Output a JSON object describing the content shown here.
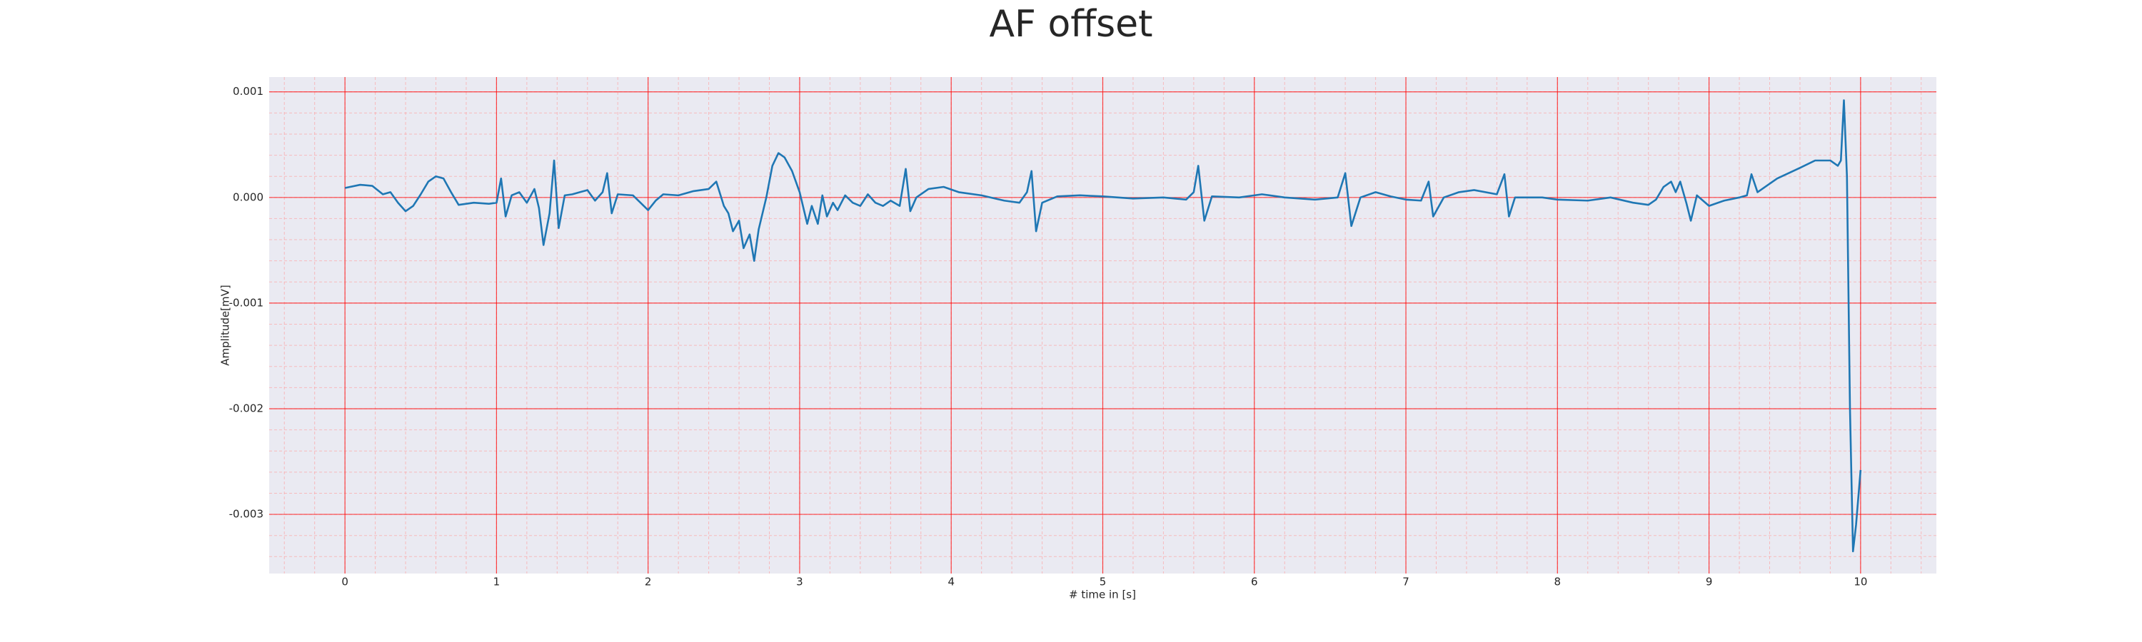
{
  "chart_data": {
    "type": "line",
    "title": "AF offset",
    "xlabel": "# time in [s]",
    "ylabel": "Amplitude[mV]",
    "xlim": [
      -0.5,
      10.5
    ],
    "ylim": [
      -0.00356,
      0.00114
    ],
    "xticks": [
      0,
      1,
      2,
      3,
      4,
      5,
      6,
      7,
      8,
      9,
      10
    ],
    "yticks": [
      -0.003,
      -0.002,
      -0.001,
      {
        "value": 0,
        "label": "0.000"
      },
      0.001
    ],
    "grid": true,
    "minor_grid": true,
    "grid_color": "#ff0000",
    "minor_grid_color": "#ff9999",
    "background": "#eaeaf2",
    "x": [
      0,
      0.1,
      0.18,
      0.25,
      0.3,
      0.35,
      0.4,
      0.45,
      0.5,
      0.55,
      0.6,
      0.65,
      0.7,
      0.75,
      0.85,
      0.95,
      1.0,
      1.03,
      1.06,
      1.1,
      1.15,
      1.2,
      1.25,
      1.28,
      1.31,
      1.35,
      1.38,
      1.41,
      1.45,
      1.5,
      1.55,
      1.6,
      1.65,
      1.7,
      1.73,
      1.76,
      1.8,
      1.9,
      1.95,
      2.0,
      2.05,
      2.1,
      2.2,
      2.3,
      2.4,
      2.45,
      2.5,
      2.53,
      2.56,
      2.6,
      2.63,
      2.67,
      2.7,
      2.73,
      2.78,
      2.82,
      2.86,
      2.9,
      2.95,
      3.0,
      3.05,
      3.08,
      3.12,
      3.15,
      3.18,
      3.22,
      3.25,
      3.3,
      3.35,
      3.4,
      3.45,
      3.5,
      3.55,
      3.6,
      3.66,
      3.7,
      3.73,
      3.77,
      3.85,
      3.95,
      4.05,
      4.2,
      4.35,
      4.45,
      4.5,
      4.53,
      4.56,
      4.6,
      4.7,
      4.85,
      5.0,
      5.2,
      5.4,
      5.55,
      5.6,
      5.63,
      5.67,
      5.72,
      5.9,
      6.05,
      6.2,
      6.4,
      6.55,
      6.6,
      6.64,
      6.7,
      6.8,
      6.9,
      7.0,
      7.1,
      7.15,
      7.18,
      7.25,
      7.35,
      7.45,
      7.6,
      7.65,
      7.68,
      7.72,
      7.9,
      8.0,
      8.2,
      8.35,
      8.5,
      8.6,
      8.65,
      8.7,
      8.75,
      8.78,
      8.81,
      8.85,
      8.88,
      8.92,
      9.0,
      9.1,
      9.2,
      9.25,
      9.28,
      9.32,
      9.45,
      9.6,
      9.7,
      9.8,
      9.85,
      9.87,
      9.89,
      9.91,
      9.93,
      9.95,
      9.97,
      10.0
    ],
    "series": [
      {
        "color": "#1f77b4",
        "values": [
          9e-05,
          0.00012,
          0.00011,
          3e-05,
          5e-05,
          -5e-05,
          -0.00013,
          -8e-05,
          3e-05,
          0.00015,
          0.0002,
          0.00018,
          5e-05,
          -7e-05,
          -5e-05,
          -6e-05,
          -5e-05,
          0.00018,
          -0.00018,
          2e-05,
          5e-05,
          -5e-05,
          8e-05,
          -0.0001,
          -0.00045,
          -0.00015,
          0.00035,
          -0.00029,
          2e-05,
          3e-05,
          5e-05,
          7e-05,
          -3e-05,
          5e-05,
          0.00023,
          -0.00015,
          3e-05,
          2e-05,
          -5e-05,
          -0.00012,
          -3e-05,
          3e-05,
          2e-05,
          6e-05,
          8e-05,
          0.00015,
          -8e-05,
          -0.00015,
          -0.00032,
          -0.00022,
          -0.00048,
          -0.00035,
          -0.0006,
          -0.0003,
          0,
          0.0003,
          0.00042,
          0.00038,
          0.00025,
          5e-05,
          -0.00025,
          -8e-05,
          -0.00025,
          2e-05,
          -0.00018,
          -5e-05,
          -0.00012,
          2e-05,
          -5e-05,
          -8e-05,
          3e-05,
          -5e-05,
          -8e-05,
          -3e-05,
          -8e-05,
          0.00027,
          -0.00013,
          0,
          8e-05,
          0.0001,
          5e-05,
          2e-05,
          -3e-05,
          -5e-05,
          5e-05,
          0.00025,
          -0.00032,
          -5e-05,
          1e-05,
          2e-05,
          1e-05,
          -1e-05,
          0,
          -2e-05,
          5e-05,
          0.0003,
          -0.00022,
          1e-05,
          0,
          3e-05,
          0,
          -2e-05,
          0,
          0.00023,
          -0.00027,
          0,
          5e-05,
          1e-05,
          -2e-05,
          -3e-05,
          0.00015,
          -0.00018,
          0,
          5e-05,
          7e-05,
          3e-05,
          0.00022,
          -0.00018,
          0,
          0,
          -2e-05,
          -3e-05,
          0,
          -5e-05,
          -7e-05,
          -2e-05,
          0.0001,
          0.00015,
          5e-05,
          0.00015,
          -5e-05,
          -0.00022,
          2e-05,
          -8e-05,
          -3e-05,
          0,
          2e-05,
          0.00022,
          5e-05,
          0.00018,
          0.00028,
          0.00035,
          0.00035,
          0.0003,
          0.00035,
          0.00092,
          0.0002,
          -0.002,
          -0.00335,
          -0.0031,
          -0.00258
        ]
      }
    ]
  }
}
